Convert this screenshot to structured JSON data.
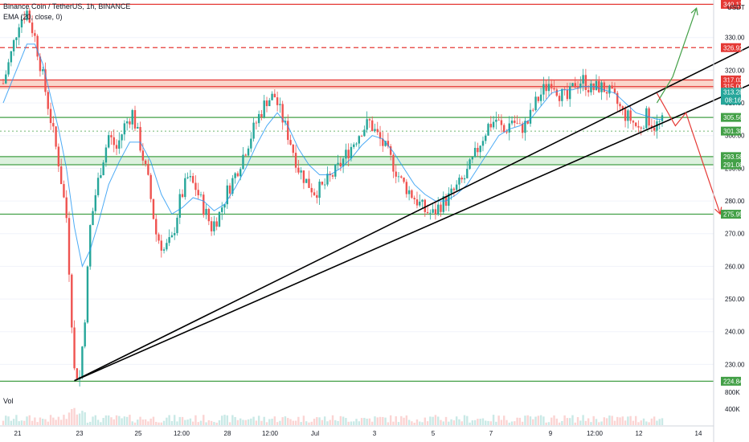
{
  "header": {
    "symbol": "Binance Coin / TetherUS, 1h, BINANCE",
    "ema": "EMA (20, close, 0)",
    "currency": "USDT",
    "volume_label": "Vol"
  },
  "colors": {
    "up": "#26a69a",
    "down": "#ef5350",
    "ema": "#2196f3",
    "resistance": "#e53935",
    "support": "#43a047",
    "trend": "#000000",
    "zone_red": "#f8c4b4",
    "zone_green": "#cdebd0"
  },
  "chart_data": {
    "type": "candlestick",
    "ylim": [
      221,
      341
    ],
    "y_ticks": [
      230,
      240,
      250,
      260,
      270,
      280,
      290,
      300,
      310,
      320,
      330
    ],
    "x_ticks": [
      "21",
      "23",
      "25",
      "12:00",
      "28",
      "12:00",
      "Jul",
      "3",
      "5",
      "7",
      "9",
      "12:00",
      "12",
      "14"
    ],
    "volume_ticks": [
      "800K",
      "400K"
    ],
    "close_path": [
      [
        0,
        316
      ],
      [
        3,
        325
      ],
      [
        6,
        335
      ],
      [
        9,
        338
      ],
      [
        12,
        330
      ],
      [
        15,
        318
      ],
      [
        18,
        305
      ],
      [
        21,
        292
      ],
      [
        24,
        275
      ],
      [
        27,
        228
      ],
      [
        29,
        226
      ],
      [
        31,
        245
      ],
      [
        33,
        272
      ],
      [
        35,
        282
      ],
      [
        37,
        290
      ],
      [
        40,
        300
      ],
      [
        43,
        296
      ],
      [
        46,
        303
      ],
      [
        49,
        307
      ],
      [
        52,
        297
      ],
      [
        55,
        286
      ],
      [
        58,
        270
      ],
      [
        61,
        265
      ],
      [
        64,
        268
      ],
      [
        67,
        280
      ],
      [
        70,
        287
      ],
      [
        73,
        284
      ],
      [
        76,
        278
      ],
      [
        79,
        272
      ],
      [
        82,
        276
      ],
      [
        85,
        283
      ],
      [
        88,
        288
      ],
      [
        91,
        294
      ],
      [
        94,
        300
      ],
      [
        97,
        306
      ],
      [
        100,
        311
      ],
      [
        103,
        312
      ],
      [
        106,
        305
      ],
      [
        109,
        298
      ],
      [
        112,
        290
      ],
      [
        115,
        286
      ],
      [
        118,
        283
      ],
      [
        121,
        284
      ],
      [
        124,
        287
      ],
      [
        127,
        290
      ],
      [
        130,
        294
      ],
      [
        133,
        298
      ],
      [
        136,
        302
      ],
      [
        139,
        304
      ],
      [
        142,
        300
      ],
      [
        145,
        296
      ],
      [
        148,
        291
      ],
      [
        151,
        286
      ],
      [
        154,
        283
      ],
      [
        157,
        280
      ],
      [
        160,
        277
      ],
      [
        163,
        276
      ],
      [
        166,
        279
      ],
      [
        169,
        281
      ],
      [
        172,
        284
      ],
      [
        175,
        287
      ],
      [
        178,
        292
      ],
      [
        181,
        298
      ],
      [
        184,
        303
      ],
      [
        187,
        305
      ],
      [
        190,
        301
      ],
      [
        193,
        305
      ],
      [
        196,
        302
      ],
      [
        199,
        304
      ],
      [
        202,
        310
      ],
      [
        205,
        314
      ],
      [
        208,
        317
      ],
      [
        211,
        313
      ],
      [
        214,
        311
      ],
      [
        217,
        316
      ],
      [
        220,
        317
      ],
      [
        223,
        314
      ],
      [
        226,
        315
      ],
      [
        229,
        314
      ],
      [
        232,
        311
      ],
      [
        235,
        307
      ],
      [
        238,
        305
      ],
      [
        241,
        302
      ],
      [
        244,
        306
      ],
      [
        247,
        303
      ],
      [
        250,
        304
      ]
    ],
    "ema_values": [
      [
        0,
        310
      ],
      [
        3,
        316
      ],
      [
        6,
        322
      ],
      [
        9,
        328
      ],
      [
        12,
        328
      ],
      [
        15,
        322
      ],
      [
        18,
        312
      ],
      [
        21,
        302
      ],
      [
        24,
        290
      ],
      [
        27,
        272
      ],
      [
        30,
        260
      ],
      [
        33,
        265
      ],
      [
        36,
        273
      ],
      [
        40,
        285
      ],
      [
        44,
        292
      ],
      [
        48,
        298
      ],
      [
        52,
        298
      ],
      [
        56,
        292
      ],
      [
        60,
        282
      ],
      [
        64,
        276
      ],
      [
        68,
        278
      ],
      [
        72,
        281
      ],
      [
        76,
        280
      ],
      [
        80,
        277
      ],
      [
        84,
        279
      ],
      [
        88,
        284
      ],
      [
        92,
        290
      ],
      [
        96,
        297
      ],
      [
        100,
        303
      ],
      [
        104,
        307
      ],
      [
        108,
        303
      ],
      [
        112,
        296
      ],
      [
        116,
        291
      ],
      [
        120,
        288
      ],
      [
        124,
        288
      ],
      [
        128,
        290
      ],
      [
        132,
        293
      ],
      [
        136,
        297
      ],
      [
        140,
        300
      ],
      [
        144,
        299
      ],
      [
        148,
        295
      ],
      [
        152,
        290
      ],
      [
        156,
        285
      ],
      [
        160,
        282
      ],
      [
        164,
        280
      ],
      [
        168,
        280
      ],
      [
        172,
        282
      ],
      [
        176,
        285
      ],
      [
        180,
        290
      ],
      [
        184,
        295
      ],
      [
        188,
        300
      ],
      [
        192,
        302
      ],
      [
        196,
        303
      ],
      [
        200,
        305
      ],
      [
        204,
        309
      ],
      [
        208,
        313
      ],
      [
        212,
        314
      ],
      [
        216,
        314
      ],
      [
        220,
        315
      ],
      [
        224,
        315
      ],
      [
        228,
        314
      ],
      [
        232,
        313
      ],
      [
        236,
        310
      ],
      [
        240,
        307
      ],
      [
        244,
        306
      ],
      [
        248,
        305
      ],
      [
        250,
        305
      ]
    ],
    "price_levels": [
      {
        "value": 340.17,
        "label": "340.17",
        "kind": "resistance",
        "style": "solid"
      },
      {
        "value": 326.92,
        "label": "326.92",
        "kind": "resistance",
        "style": "dashed"
      },
      {
        "value": 317.03,
        "label": "317.03",
        "kind": "resistance",
        "style": "solid"
      },
      {
        "value": 315.0,
        "label": "315.00",
        "kind": "resistance",
        "style": "solid"
      },
      {
        "value": 305.56,
        "label": "305.56",
        "kind": "support",
        "style": "solid"
      },
      {
        "value": 301.38,
        "label": "301.38",
        "kind": "support",
        "style": "dotted"
      },
      {
        "value": 293.58,
        "label": "293.58",
        "kind": "support",
        "style": "solid"
      },
      {
        "value": 291.08,
        "label": "291.08",
        "kind": "support",
        "style": "solid"
      },
      {
        "value": 275.95,
        "label": "275.95",
        "kind": "support",
        "style": "solid"
      },
      {
        "value": 224.84,
        "label": "224.84",
        "kind": "support",
        "style": "solid"
      }
    ],
    "last_price": {
      "value": 313.28,
      "label": "313.28",
      "countdown": "08:16"
    },
    "zones": [
      {
        "from": 314.2,
        "to": 317.03,
        "kind": "resistance"
      },
      {
        "from": 291.08,
        "to": 293.58,
        "kind": "support"
      }
    ],
    "trendlines": [
      {
        "from": [
          27,
          225
        ],
        "to": [
          285,
          328
        ]
      },
      {
        "from": [
          27,
          225
        ],
        "to": [
          290,
          318
        ]
      }
    ],
    "scenario_bull": [
      [
        248,
        310
      ],
      [
        254,
        318
      ],
      [
        263,
        339
      ]
    ],
    "scenario_bear": [
      [
        248,
        313
      ],
      [
        255,
        303
      ],
      [
        259,
        307
      ],
      [
        272,
        276
      ]
    ]
  }
}
